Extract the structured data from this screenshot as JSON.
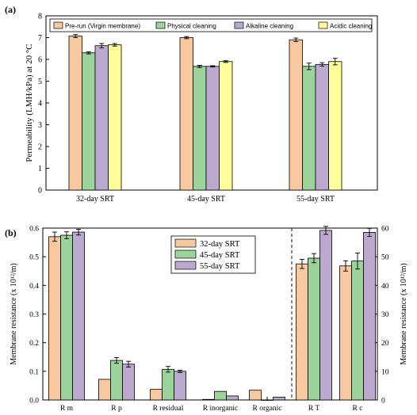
{
  "chart_data": [
    {
      "panel_label": "(a)",
      "type": "bar",
      "ylabel": "Permeability (LMH/kPa) at 20 °C",
      "ylim": [
        0,
        8
      ],
      "yticks": [
        "0",
        "1",
        "2",
        "3",
        "4",
        "5",
        "6",
        "7",
        "8"
      ],
      "categories": [
        "32-day SRT",
        "45-day SRT",
        "55-day SRT"
      ],
      "legend_position": "top",
      "series": [
        {
          "name": "Pre-run (Virgin membrane)",
          "color": "#F8C8A0",
          "values": [
            7.07,
            7.0,
            6.9
          ],
          "errors": [
            0.07,
            0.05,
            0.08
          ]
        },
        {
          "name": "Physical cleaning",
          "color": "#9BD39B",
          "values": [
            6.3,
            5.68,
            5.68
          ],
          "errors": [
            0.05,
            0.05,
            0.15
          ]
        },
        {
          "name": "Alkaline cleaning",
          "color": "#BBA9D0",
          "values": [
            6.63,
            5.68,
            5.77
          ],
          "errors": [
            0.1,
            0.03,
            0.08
          ]
        },
        {
          "name": "Acidic cleaning",
          "color": "#FFFF99",
          "values": [
            6.67,
            5.9,
            5.9
          ],
          "errors": [
            0.06,
            0.04,
            0.15
          ]
        }
      ]
    },
    {
      "panel_label": "(b)",
      "type": "bar",
      "ylabel": "Membrane resistance (x 10¹²/m)",
      "ylabel_right": "Membrane resistance (x 10¹²/m)",
      "ylim": [
        0,
        0.6
      ],
      "yticks": [
        "0.0",
        "0.1",
        "0.2",
        "0.3",
        "0.4",
        "0.5",
        "0.6"
      ],
      "ylim_right": [
        0,
        60
      ],
      "yticks_right": [
        "0",
        "10",
        "20",
        "30",
        "40",
        "50",
        "60"
      ],
      "categories": [
        "R m",
        "R p",
        "R residual",
        "R inorganic",
        "R organic",
        "R T",
        "R c"
      ],
      "right_axis_categories": [
        "R T",
        "R c"
      ],
      "legend_position": "top-center",
      "series": [
        {
          "name": "32-day SRT",
          "color": "#F8C8A0",
          "values": [
            0.57,
            0.072,
            0.037,
            0.002,
            0.034,
            47.5,
            46.8
          ],
          "errors": [
            0.016,
            0.0,
            0.0,
            0.0,
            0.0,
            1.6,
            1.8
          ]
        },
        {
          "name": "45-day SRT",
          "color": "#9BD39B",
          "values": [
            0.575,
            0.138,
            0.107,
            0.03,
            0.0,
            49.5,
            48.5
          ],
          "errors": [
            0.012,
            0.01,
            0.01,
            0.0,
            0.0,
            1.6,
            2.8
          ]
        },
        {
          "name": "55-day SRT",
          "color": "#BBA9D0",
          "values": [
            0.586,
            0.125,
            0.1,
            0.014,
            0.01,
            59.2,
            58.5
          ],
          "errors": [
            0.01,
            0.01,
            0.004,
            0.0,
            0.0,
            1.4,
            1.4
          ]
        }
      ]
    }
  ]
}
